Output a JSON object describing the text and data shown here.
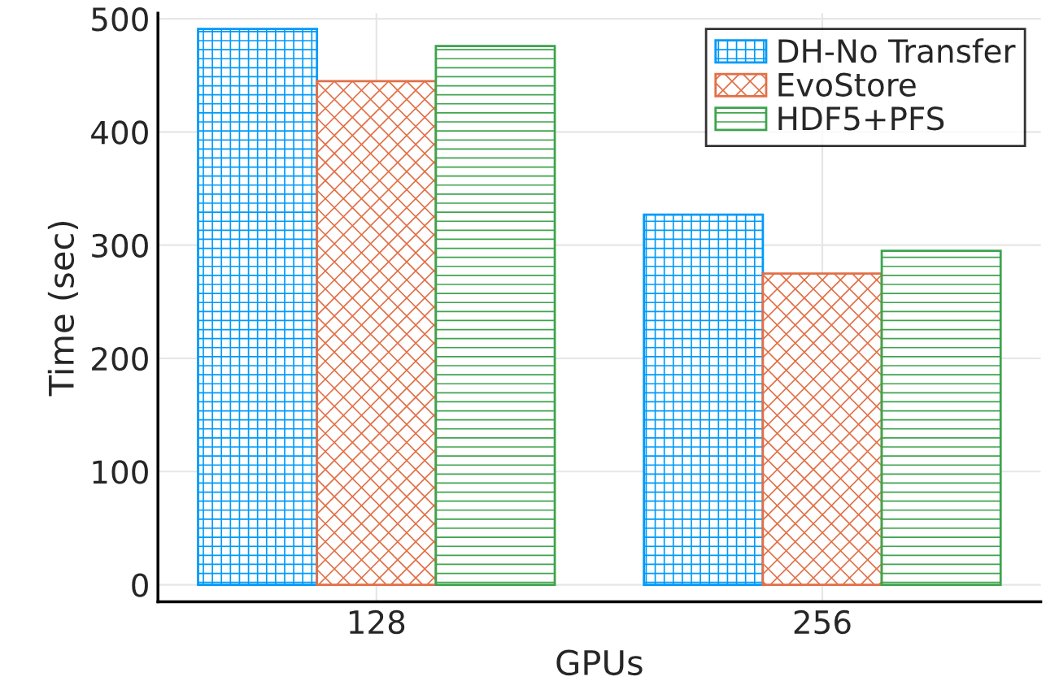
{
  "chart_data": {
    "type": "bar",
    "xlabel": "GPUs",
    "ylabel": "Time (sec)",
    "categories": [
      "128",
      "256"
    ],
    "series": [
      {
        "name": "DH-No Transfer",
        "color": "#009af9",
        "values": [
          491,
          327
        ]
      },
      {
        "name": "EvoStore",
        "color": "#e26f46",
        "values": [
          445,
          275
        ]
      },
      {
        "name": "HDF5+PFS",
        "color": "#3da44d",
        "values": [
          476,
          295
        ]
      }
    ],
    "ylim": [
      -15,
      505
    ],
    "yticks": [
      0,
      100,
      200,
      300,
      400,
      500
    ],
    "grid": true,
    "legend": "top right"
  }
}
